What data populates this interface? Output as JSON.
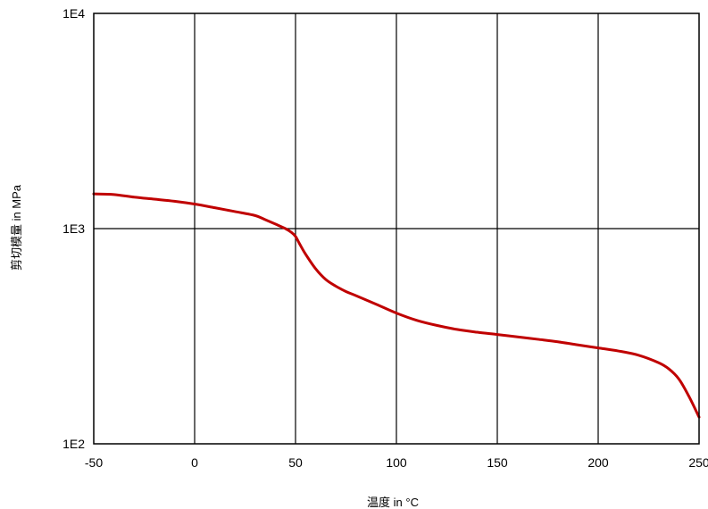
{
  "chart_data": {
    "type": "line",
    "title": "",
    "xlabel": "温度 in °C",
    "ylabel": "剪切模量 in MPa",
    "xlim": [
      -50,
      250
    ],
    "ylim": [
      100,
      10000
    ],
    "yscale": "log",
    "grid": true,
    "x_ticks": [
      "-50",
      "0",
      "50",
      "100",
      "150",
      "200",
      "250"
    ],
    "y_ticks": [
      "1E2",
      "1E3",
      "1E4"
    ],
    "line_color": "#c00000",
    "series": [
      {
        "x": [
          -50,
          -40,
          -30,
          -20,
          -10,
          0,
          10,
          20,
          30,
          35,
          40,
          45,
          48,
          50,
          52,
          55,
          60,
          65,
          70,
          75,
          80,
          90,
          100,
          110,
          120,
          130,
          140,
          150,
          160,
          170,
          180,
          190,
          200,
          210,
          220,
          230,
          235,
          240,
          245,
          250
        ],
        "values": [
          1450,
          1440,
          1400,
          1370,
          1340,
          1300,
          1250,
          1200,
          1150,
          1100,
          1050,
          1000,
          960,
          920,
          850,
          760,
          650,
          580,
          540,
          510,
          488,
          445,
          405,
          375,
          355,
          340,
          330,
          322,
          314,
          306,
          298,
          288,
          279,
          270,
          258,
          238,
          223,
          200,
          166,
          133
        ]
      }
    ]
  }
}
